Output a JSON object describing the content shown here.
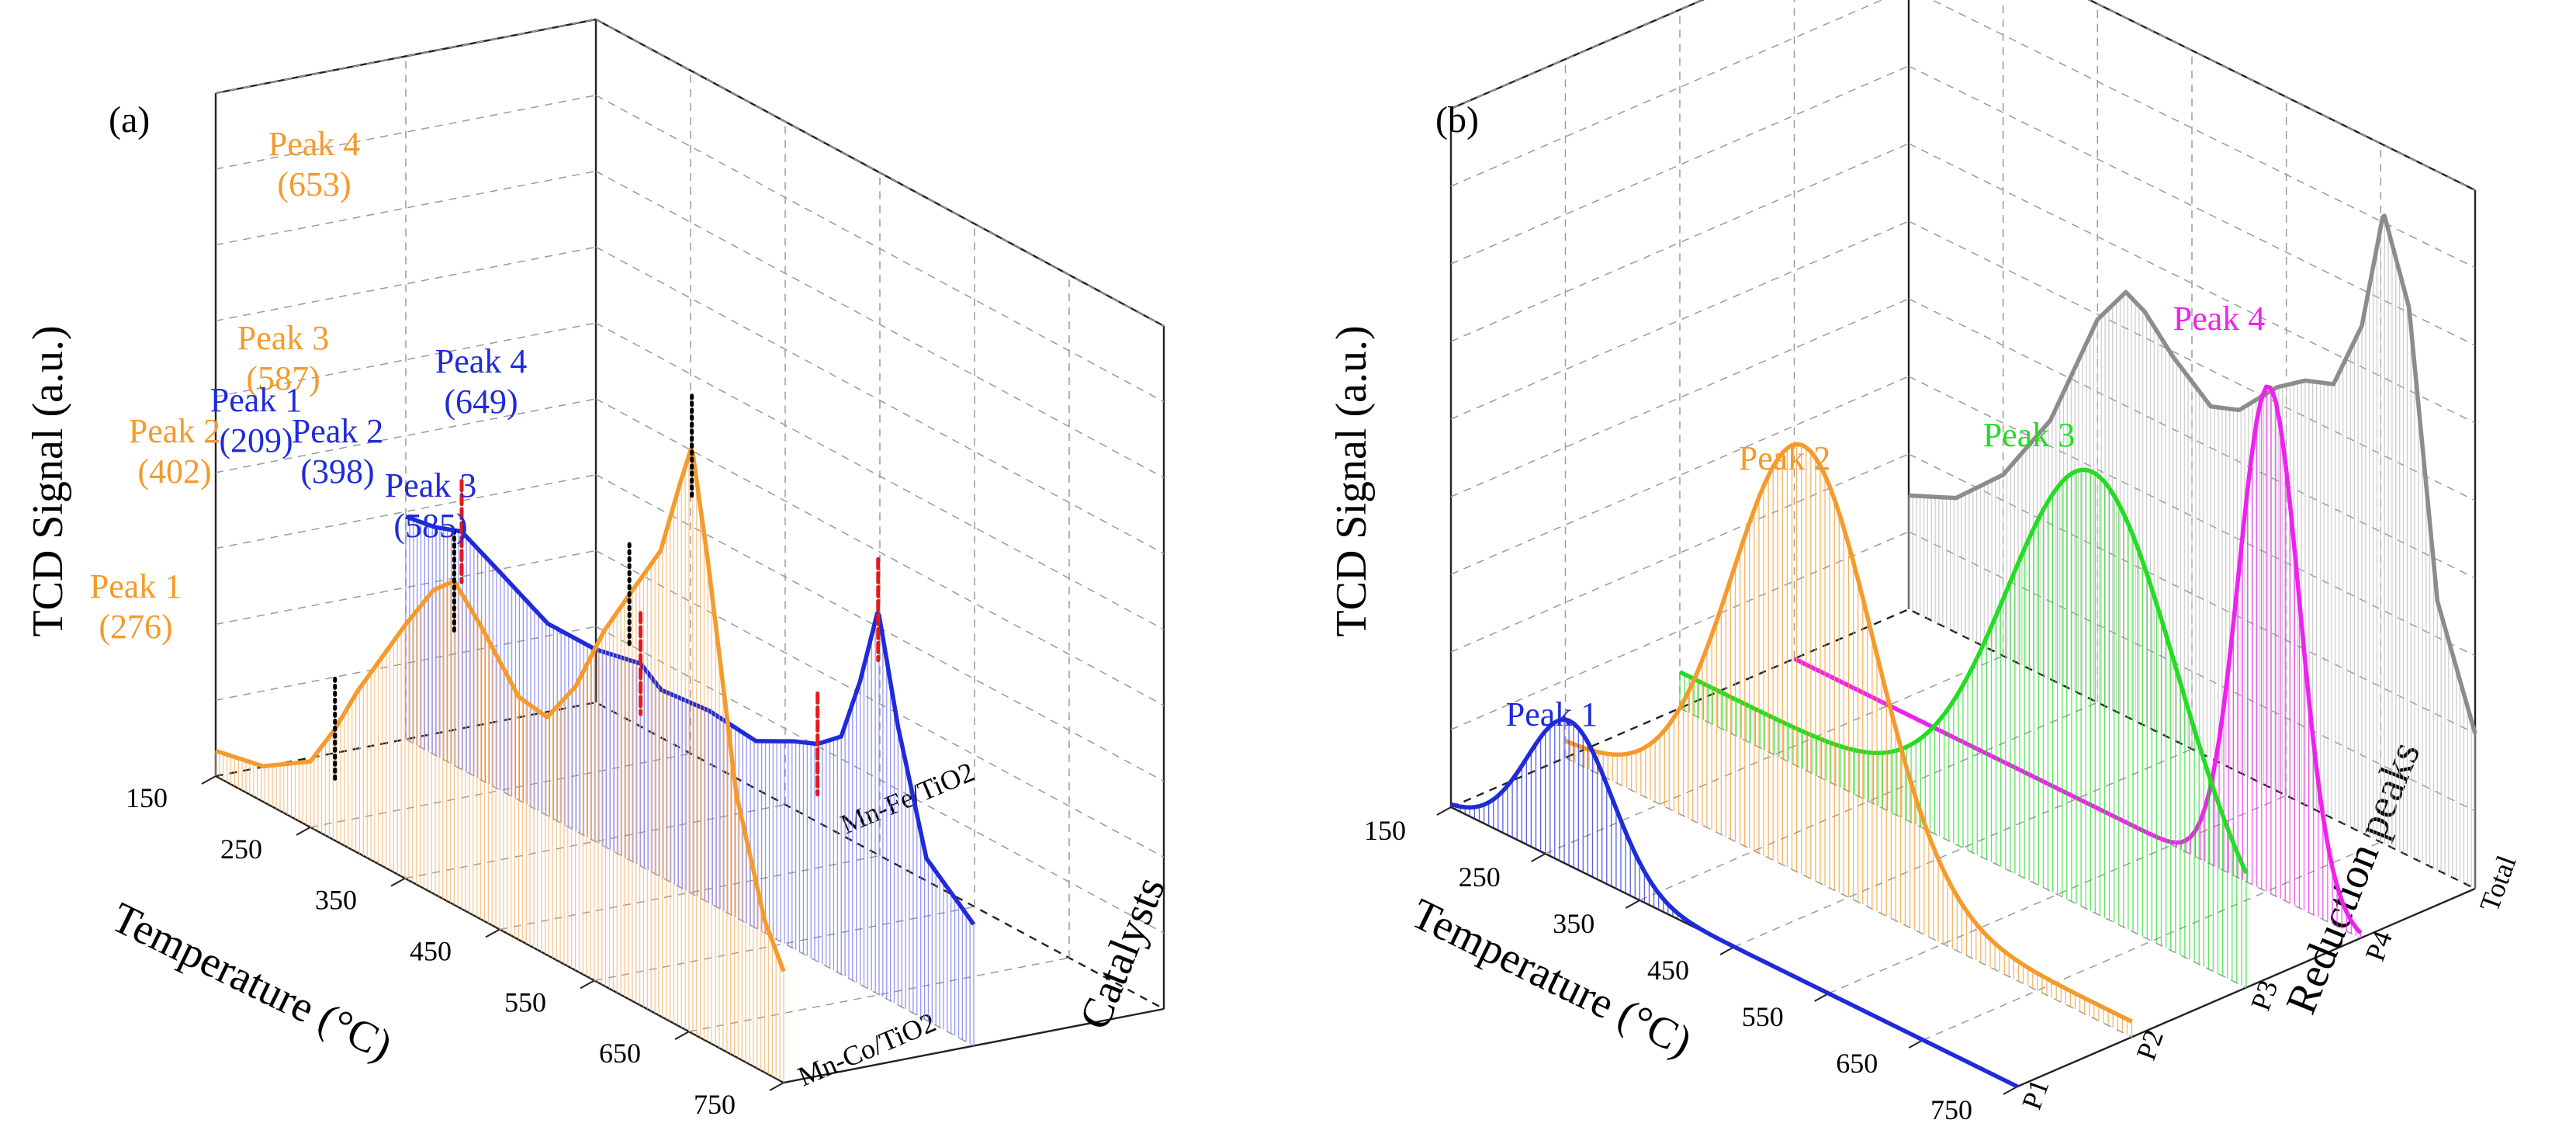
{
  "colors": {
    "orange": "#f59a2c",
    "orange_fill": "#f7b26b",
    "blue": "#1f2bd9",
    "blue_fill": "#6f73ee",
    "green": "#22dd22",
    "magenta": "#ee22ee",
    "gray": "#8c8c8c",
    "red_marker": "#e31a1c",
    "grid": "#9a9a9a"
  },
  "chart_data": [
    {
      "type": "line",
      "panel_label": "(a)",
      "title": "",
      "xlabel": "Temperature (°C)",
      "ylabel": "TCD Signal (a.u.)",
      "zlabel": "Catalysts",
      "x_ticks": [
        150,
        250,
        350,
        450,
        550,
        650,
        750
      ],
      "xlim": [
        150,
        750
      ],
      "categories": [
        "Mn-Co/TiO2",
        "Mn-Fe/TiO2"
      ],
      "series": [
        {
          "name": "Mn-Co/TiO2",
          "color": "orange",
          "x": [
            150,
            200,
            250,
            276,
            300,
            350,
            380,
            402,
            430,
            470,
            500,
            530,
            560,
            587,
            620,
            640,
            653,
            670,
            700,
            730,
            750
          ],
          "values": [
            0.05,
            0.07,
            0.13,
            0.22,
            0.32,
            0.5,
            0.6,
            0.64,
            0.58,
            0.48,
            0.47,
            0.56,
            0.7,
            0.8,
            0.92,
            1.07,
            1.16,
            0.95,
            0.52,
            0.3,
            0.22
          ],
          "peaks": [
            {
              "label": "Peak 1",
              "temp_text": "(276)",
              "x": 276
            },
            {
              "label": "Peak 2",
              "temp_text": "(402)",
              "x": 402
            },
            {
              "label": "Peak 3",
              "temp_text": "(587)",
              "x": 587
            },
            {
              "label": "Peak 4",
              "temp_text": "(653)",
              "x": 653
            }
          ]
        },
        {
          "name": "Mn-Fe/TiO2",
          "color": "blue",
          "x": [
            150,
            180,
            209,
            250,
            300,
            350,
            398,
            420,
            470,
            520,
            560,
            585,
            610,
            630,
            649,
            670,
            700,
            750
          ],
          "values": [
            0.44,
            0.45,
            0.47,
            0.43,
            0.38,
            0.38,
            0.4,
            0.37,
            0.38,
            0.37,
            0.41,
            0.43,
            0.47,
            0.6,
            0.76,
            0.55,
            0.32,
            0.24
          ],
          "peaks": [
            {
              "label": "Peak 1",
              "temp_text": "(209)",
              "x": 209
            },
            {
              "label": "Peak 2",
              "temp_text": "(398)",
              "x": 398
            },
            {
              "label": "Peak 3",
              "temp_text": "(585)",
              "x": 585
            },
            {
              "label": "Peak 4",
              "temp_text": "(649)",
              "x": 649
            }
          ]
        }
      ]
    },
    {
      "type": "line",
      "panel_label": "(b)",
      "title": "",
      "xlabel": "Temperature (°C)",
      "ylabel": "TCD Signal (a.u.)",
      "zlabel": "Reduction peaks",
      "x_ticks": [
        150,
        250,
        350,
        450,
        550,
        650,
        750
      ],
      "xlim": [
        150,
        750
      ],
      "categories": [
        "P1",
        "P2",
        "P3",
        "P4",
        "Total"
      ],
      "series": [
        {
          "name": "P1",
          "label": "Peak 1",
          "color": "blue",
          "center": 276,
          "width": 45,
          "amplitude": 0.28,
          "baseline": 0.0
        },
        {
          "name": "P2",
          "label": "Peak 2",
          "color": "orange",
          "center": 402,
          "width": 75,
          "amplitude": 0.8,
          "baseline": 0.03
        },
        {
          "name": "P3",
          "label": "Peak 3",
          "color": "green",
          "center": 587,
          "width": 90,
          "amplitude": 0.78,
          "baseline": 0.07
        },
        {
          "name": "P4",
          "label": "Peak 4",
          "color": "magenta",
          "center": 653,
          "width": 32,
          "amplitude": 0.98,
          "baseline": 0.0
        },
        {
          "name": "Total",
          "label": "",
          "color": "gray",
          "x": [
            150,
            200,
            250,
            300,
            350,
            380,
            400,
            430,
            470,
            500,
            540,
            570,
            600,
            630,
            653,
            680,
            710,
            750
          ],
          "values": [
            0.22,
            0.26,
            0.35,
            0.5,
            0.74,
            0.82,
            0.8,
            0.74,
            0.68,
            0.7,
            0.78,
            0.82,
            0.84,
            0.98,
            1.22,
            1.06,
            0.52,
            0.3
          ]
        }
      ]
    }
  ]
}
